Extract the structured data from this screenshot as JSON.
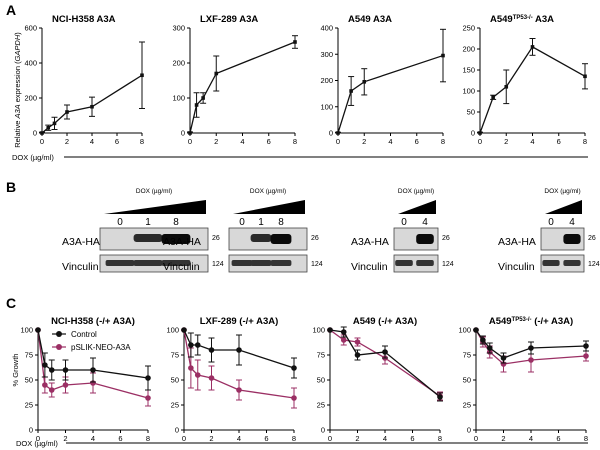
{
  "panel_letters": {
    "A": "A",
    "B": "B",
    "C": "C"
  },
  "colors": {
    "control": "#111111",
    "a3a": "#9b2f64",
    "axis": "#000000"
  },
  "panelA": {
    "ylabel_pre": "Relative ",
    "ylabel_it": "A3A",
    "ylabel_mid": " expression (",
    "ylabel_it2": "GAPDH",
    "ylabel_post": ")",
    "dox_label": "DOX (µg/ml)"
  },
  "panelB": {
    "blots": [
      {
        "dox_header": "DOX (µg/ml)",
        "lanes": [
          "0",
          "1",
          "8"
        ],
        "row1": "A3A-HA",
        "row2": "Vinculin",
        "mw1": "26",
        "mw2": "124"
      },
      {
        "dox_header": "DOX (µg/ml)",
        "lanes": [
          "0",
          "1",
          "8"
        ],
        "row1": "A3A-HA",
        "row2": "Vinculin",
        "mw1": "26",
        "mw2": "124"
      },
      {
        "dox_header": "DOX (µg/ml)",
        "lanes": [
          "0",
          "4"
        ],
        "row1": "A3A-HA",
        "row2": "Vinculin",
        "mw1": "26",
        "mw2": "124"
      },
      {
        "dox_header": "DOX (µg/ml)",
        "lanes": [
          "0",
          "4"
        ],
        "row1": "A3A-HA",
        "row2": "Vinculin",
        "mw1": "26",
        "mw2": "124"
      }
    ]
  },
  "panelC": {
    "ylabel": "% Growth",
    "dox_label": "DOX (µg/ml)",
    "legend": {
      "control": "Control",
      "a3a": "pSLIK-NEO-A3A"
    }
  },
  "chart_data": [
    {
      "type": "line",
      "panel": "A",
      "title": "NCI-H358 A3A",
      "ylim": [
        0,
        600
      ],
      "yticks": [
        0,
        200,
        400,
        600
      ],
      "xlim": [
        0,
        8
      ],
      "xticks": [
        0,
        2,
        4,
        6,
        8
      ],
      "series": [
        {
          "x": [
            0,
            0.5,
            1,
            2,
            4,
            8
          ],
          "y": [
            0,
            30,
            55,
            120,
            150,
            330
          ],
          "err": [
            5,
            15,
            35,
            40,
            55,
            190
          ]
        }
      ]
    },
    {
      "type": "line",
      "panel": "A",
      "title": "LXF-289 A3A",
      "ylim": [
        0,
        300
      ],
      "yticks": [
        0,
        100,
        200,
        300
      ],
      "xlim": [
        0,
        8
      ],
      "xticks": [
        0,
        2,
        4,
        6,
        8
      ],
      "series": [
        {
          "x": [
            0,
            0.5,
            1,
            2,
            8
          ],
          "y": [
            0,
            80,
            100,
            170,
            260
          ],
          "err": [
            3,
            35,
            15,
            50,
            18
          ]
        }
      ]
    },
    {
      "type": "line",
      "panel": "A",
      "title": "A549 A3A",
      "ylim": [
        0,
        400
      ],
      "yticks": [
        0,
        100,
        200,
        300,
        400
      ],
      "xlim": [
        0,
        8
      ],
      "xticks": [
        0,
        2,
        4,
        6,
        8
      ],
      "series": [
        {
          "x": [
            0,
            1,
            2,
            8
          ],
          "y": [
            0,
            160,
            195,
            295
          ],
          "err": [
            3,
            55,
            50,
            100
          ]
        }
      ]
    },
    {
      "type": "line",
      "panel": "A",
      "title_pre": "A549",
      "title_sup": "TP53-/-",
      "title_post": " A3A",
      "ylim": [
        0,
        250
      ],
      "yticks": [
        0,
        50,
        100,
        150,
        200,
        250
      ],
      "xlim": [
        0,
        8
      ],
      "xticks": [
        0,
        2,
        4,
        6,
        8
      ],
      "series": [
        {
          "x": [
            0,
            1,
            2,
            4,
            8
          ],
          "y": [
            0,
            85,
            110,
            205,
            135
          ],
          "err": [
            2,
            5,
            40,
            20,
            30
          ]
        }
      ]
    },
    {
      "type": "line",
      "panel": "C",
      "title": "NCI-H358 (-/+ A3A)",
      "ylim": [
        0,
        100
      ],
      "yticks": [
        0,
        25,
        50,
        75,
        100
      ],
      "xlim": [
        0,
        8
      ],
      "xticks": [
        0,
        2,
        4,
        6,
        8
      ],
      "series": [
        {
          "name": "Control",
          "x": [
            0,
            0.5,
            1,
            2,
            4,
            8
          ],
          "y": [
            100,
            65,
            60,
            60,
            60,
            52
          ],
          "err": [
            0,
            12,
            10,
            10,
            12,
            12
          ]
        },
        {
          "name": "pSLIK-NEO-A3A",
          "x": [
            0,
            0.5,
            1,
            2,
            4,
            8
          ],
          "y": [
            100,
            45,
            40,
            45,
            47,
            32
          ],
          "err": [
            0,
            8,
            7,
            8,
            10,
            8
          ]
        }
      ]
    },
    {
      "type": "line",
      "panel": "C",
      "title": "LXF-289 (-/+ A3A)",
      "ylim": [
        0,
        100
      ],
      "yticks": [
        0,
        25,
        50,
        75,
        100
      ],
      "xlim": [
        0,
        8
      ],
      "xticks": [
        0,
        2,
        4,
        6,
        8
      ],
      "series": [
        {
          "name": "Control",
          "x": [
            0,
            0.5,
            1,
            2,
            4,
            8
          ],
          "y": [
            100,
            85,
            85,
            80,
            80,
            62
          ],
          "err": [
            0,
            12,
            10,
            12,
            15,
            10
          ]
        },
        {
          "name": "pSLIK-NEO-A3A",
          "x": [
            0,
            0.5,
            1,
            2,
            4,
            8
          ],
          "y": [
            100,
            62,
            55,
            52,
            40,
            32
          ],
          "err": [
            0,
            20,
            15,
            12,
            10,
            10
          ]
        }
      ]
    },
    {
      "type": "line",
      "panel": "C",
      "title": "A549 (-/+ A3A)",
      "ylim": [
        0,
        100
      ],
      "yticks": [
        0,
        25,
        50,
        75,
        100
      ],
      "xlim": [
        0,
        8
      ],
      "xticks": [
        0,
        2,
        4,
        6,
        8
      ],
      "series": [
        {
          "name": "Control",
          "x": [
            0,
            1,
            2,
            4,
            8
          ],
          "y": [
            100,
            98,
            75,
            78,
            33
          ],
          "err": [
            0,
            5,
            5,
            6,
            4
          ]
        },
        {
          "name": "pSLIK-NEO-A3A",
          "x": [
            0,
            1,
            2,
            4,
            8
          ],
          "y": [
            100,
            90,
            88,
            72,
            34
          ],
          "err": [
            0,
            5,
            4,
            6,
            4
          ]
        }
      ]
    },
    {
      "type": "line",
      "panel": "C",
      "title_pre": "A549",
      "title_sup": "TP53-/-",
      "title_post": " (-/+ A3A)",
      "ylim": [
        0,
        100
      ],
      "yticks": [
        0,
        25,
        50,
        75,
        100
      ],
      "xlim": [
        0,
        8
      ],
      "xticks": [
        0,
        2,
        4,
        6,
        8
      ],
      "series": [
        {
          "name": "Control",
          "x": [
            0,
            0.5,
            1,
            2,
            4,
            8
          ],
          "y": [
            100,
            90,
            82,
            72,
            82,
            84
          ],
          "err": [
            0,
            4,
            5,
            5,
            6,
            5
          ]
        },
        {
          "name": "pSLIK-NEO-A3A",
          "x": [
            0,
            0.5,
            1,
            2,
            4,
            8
          ],
          "y": [
            100,
            88,
            78,
            66,
            70,
            74
          ],
          "err": [
            0,
            5,
            6,
            8,
            12,
            5
          ]
        }
      ]
    }
  ]
}
